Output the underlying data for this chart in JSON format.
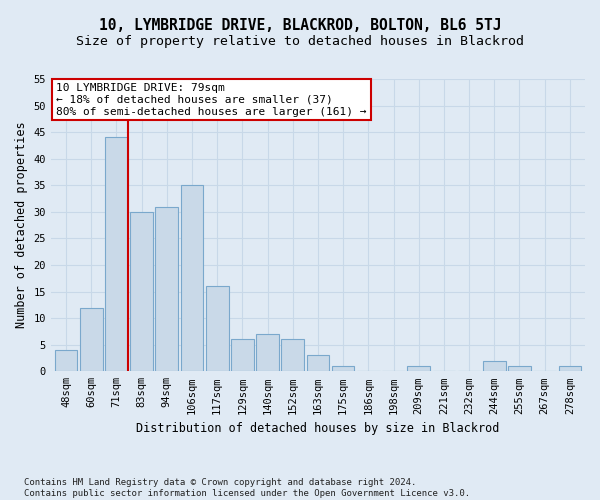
{
  "title": "10, LYMBRIDGE DRIVE, BLACKROD, BOLTON, BL6 5TJ",
  "subtitle": "Size of property relative to detached houses in Blackrod",
  "xlabel": "Distribution of detached houses by size in Blackrod",
  "ylabel": "Number of detached properties",
  "footer_line1": "Contains HM Land Registry data © Crown copyright and database right 2024.",
  "footer_line2": "Contains public sector information licensed under the Open Government Licence v3.0.",
  "bar_labels": [
    "48sqm",
    "60sqm",
    "71sqm",
    "83sqm",
    "94sqm",
    "106sqm",
    "117sqm",
    "129sqm",
    "140sqm",
    "152sqm",
    "163sqm",
    "175sqm",
    "186sqm",
    "198sqm",
    "209sqm",
    "221sqm",
    "232sqm",
    "244sqm",
    "255sqm",
    "267sqm",
    "278sqm"
  ],
  "bar_values": [
    4,
    12,
    44,
    30,
    31,
    35,
    16,
    6,
    7,
    6,
    3,
    1,
    0,
    0,
    1,
    0,
    0,
    2,
    1,
    0,
    1
  ],
  "bar_color": "#c9d9e8",
  "bar_edge_color": "#7aa8cc",
  "grid_color": "#c8d8e8",
  "bg_color": "#e0eaf4",
  "property_line_color": "#cc0000",
  "annotation_text": "10 LYMBRIDGE DRIVE: 79sqm\n← 18% of detached houses are smaller (37)\n80% of semi-detached houses are larger (161) →",
  "annotation_box_color": "#ffffff",
  "annotation_box_edge": "#cc0000",
  "ylim": [
    0,
    55
  ],
  "yticks": [
    0,
    5,
    10,
    15,
    20,
    25,
    30,
    35,
    40,
    45,
    50,
    55
  ],
  "title_fontsize": 10.5,
  "subtitle_fontsize": 9.5,
  "axis_label_fontsize": 8.5,
  "tick_fontsize": 7.5,
  "annotation_fontsize": 8.0,
  "footer_fontsize": 6.5
}
